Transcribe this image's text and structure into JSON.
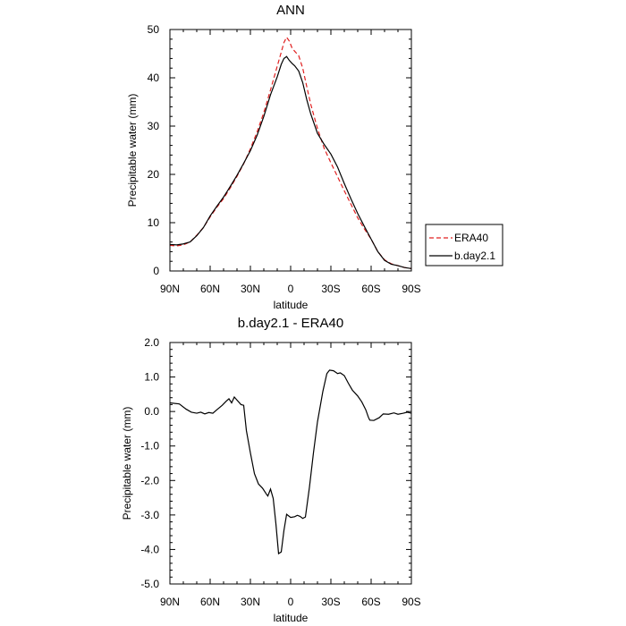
{
  "chart_data": [
    {
      "type": "line",
      "title": "ANN",
      "xlabel": "latitude",
      "ylabel": "Precipitable water (mm)",
      "xlim": [
        90,
        -90
      ],
      "ylim": [
        0,
        50
      ],
      "x_ticks": [
        90,
        60,
        30,
        0,
        -30,
        -60,
        -90
      ],
      "x_tick_labels": [
        "90N",
        "60N",
        "30N",
        "0",
        "30S",
        "60S",
        "90S"
      ],
      "y_ticks": [
        0,
        10,
        20,
        30,
        40,
        50
      ],
      "y_tick_labels": [
        "0",
        "10",
        "20",
        "30",
        "40",
        "50"
      ],
      "legend_position": "outside-right",
      "series": [
        {
          "name": "ERA40",
          "color": "#e02020",
          "dash": "dashed",
          "points": [
            [
              90,
              5.3
            ],
            [
              85,
              5.2
            ],
            [
              80,
              5.4
            ],
            [
              75,
              6.0
            ],
            [
              70,
              7.4
            ],
            [
              65,
              9.0
            ],
            [
              60,
              11.2
            ],
            [
              55,
              13.2
            ],
            [
              50,
              15.0
            ],
            [
              45,
              17.2
            ],
            [
              40,
              19.6
            ],
            [
              35,
              22.2
            ],
            [
              30,
              25.3
            ],
            [
              25,
              28.8
            ],
            [
              20,
              32.8
            ],
            [
              15,
              37.5
            ],
            [
              10,
              42.4
            ],
            [
              7,
              45.3
            ],
            [
              5,
              47.3
            ],
            [
              3,
              48.4
            ],
            [
              1,
              47.6
            ],
            [
              -1,
              46.2
            ],
            [
              -3,
              45.5
            ],
            [
              -6,
              44.6
            ],
            [
              -9,
              42.0
            ],
            [
              -12,
              38.2
            ],
            [
              -15,
              34.5
            ],
            [
              -20,
              29.5
            ],
            [
              -25,
              25.4
            ],
            [
              -30,
              22.4
            ],
            [
              -35,
              19.5
            ],
            [
              -40,
              16.6
            ],
            [
              -45,
              13.8
            ],
            [
              -50,
              11.0
            ],
            [
              -55,
              8.7
            ],
            [
              -60,
              6.6
            ],
            [
              -65,
              4.0
            ],
            [
              -70,
              2.3
            ],
            [
              -75,
              1.5
            ],
            [
              -80,
              1.1
            ],
            [
              -85,
              0.7
            ],
            [
              -90,
              0.5
            ]
          ]
        },
        {
          "name": "b.day2.1",
          "color": "#000000",
          "dash": "solid",
          "points": [
            [
              90,
              5.5
            ],
            [
              85,
              5.4
            ],
            [
              80,
              5.6
            ],
            [
              75,
              6.0
            ],
            [
              70,
              7.3
            ],
            [
              65,
              9.0
            ],
            [
              60,
              11.4
            ],
            [
              55,
              13.4
            ],
            [
              50,
              15.3
            ],
            [
              45,
              17.5
            ],
            [
              40,
              19.8
            ],
            [
              35,
              22.3
            ],
            [
              30,
              24.9
            ],
            [
              25,
              28.1
            ],
            [
              20,
              32.0
            ],
            [
              15,
              36.5
            ],
            [
              10,
              40.2
            ],
            [
              7,
              42.8
            ],
            [
              5,
              44.0
            ],
            [
              3,
              44.4
            ],
            [
              1,
              43.6
            ],
            [
              -1,
              43.0
            ],
            [
              -3,
              42.5
            ],
            [
              -6,
              41.4
            ],
            [
              -9,
              39.0
            ],
            [
              -12,
              35.5
            ],
            [
              -15,
              32.5
            ],
            [
              -20,
              28.5
            ],
            [
              -25,
              26.2
            ],
            [
              -30,
              24.2
            ],
            [
              -35,
              21.5
            ],
            [
              -40,
              18.1
            ],
            [
              -45,
              14.9
            ],
            [
              -50,
              11.9
            ],
            [
              -55,
              9.2
            ],
            [
              -60,
              6.6
            ],
            [
              -65,
              4.0
            ],
            [
              -70,
              2.2
            ],
            [
              -75,
              1.4
            ],
            [
              -80,
              1.1
            ],
            [
              -85,
              0.7
            ],
            [
              -90,
              0.5
            ]
          ]
        }
      ]
    },
    {
      "type": "line",
      "title": "b.day2.1 - ERA40",
      "xlabel": "latitude",
      "ylabel": "Precipitable water (mm)",
      "xlim": [
        90,
        -90
      ],
      "ylim": [
        -5.0,
        2.0
      ],
      "x_ticks": [
        90,
        60,
        30,
        0,
        -30,
        -60,
        -90
      ],
      "x_tick_labels": [
        "90N",
        "60N",
        "30N",
        "0",
        "30S",
        "60S",
        "90S"
      ],
      "y_ticks": [
        -5,
        -4,
        -3,
        -2,
        -1,
        0,
        1,
        2
      ],
      "y_tick_labels": [
        "-5.0",
        "-4.0",
        "-3.0",
        "-2.0",
        "-1.0",
        "0.0",
        "1.0",
        "2.0"
      ],
      "series": [
        {
          "color": "#000000",
          "dash": "solid",
          "points": [
            [
              90,
              0.25
            ],
            [
              83,
              0.22
            ],
            [
              78,
              0.07
            ],
            [
              74,
              -0.02
            ],
            [
              70,
              -0.05
            ],
            [
              67,
              -0.02
            ],
            [
              64,
              -0.07
            ],
            [
              61,
              -0.03
            ],
            [
              58,
              -0.05
            ],
            [
              55,
              0.05
            ],
            [
              51,
              0.18
            ],
            [
              48,
              0.3
            ],
            [
              46,
              0.37
            ],
            [
              44,
              0.25
            ],
            [
              42,
              0.42
            ],
            [
              40,
              0.33
            ],
            [
              37,
              0.2
            ],
            [
              35,
              0.18
            ],
            [
              33,
              -0.55
            ],
            [
              30,
              -1.2
            ],
            [
              27,
              -1.8
            ],
            [
              24,
              -2.1
            ],
            [
              21,
              -2.22
            ],
            [
              18,
              -2.4
            ],
            [
              17,
              -2.45
            ],
            [
              15,
              -2.25
            ],
            [
              13,
              -2.52
            ],
            [
              11,
              -3.25
            ],
            [
              9,
              -4.12
            ],
            [
              7,
              -4.07
            ],
            [
              5,
              -3.45
            ],
            [
              3,
              -2.98
            ],
            [
              0,
              -3.07
            ],
            [
              -3,
              -3.05
            ],
            [
              -5,
              -3.01
            ],
            [
              -7,
              -3.04
            ],
            [
              -9,
              -3.1
            ],
            [
              -11,
              -3.06
            ],
            [
              -14,
              -2.2
            ],
            [
              -17,
              -1.2
            ],
            [
              -20,
              -0.3
            ],
            [
              -24,
              0.58
            ],
            [
              -27,
              1.1
            ],
            [
              -29,
              1.2
            ],
            [
              -32,
              1.18
            ],
            [
              -35,
              1.1
            ],
            [
              -37,
              1.12
            ],
            [
              -40,
              1.04
            ],
            [
              -43,
              0.82
            ],
            [
              -46,
              0.62
            ],
            [
              -50,
              0.45
            ],
            [
              -53,
              0.28
            ],
            [
              -56,
              0.05
            ],
            [
              -58,
              -0.17
            ],
            [
              -59,
              -0.25
            ],
            [
              -62,
              -0.26
            ],
            [
              -66,
              -0.18
            ],
            [
              -69,
              -0.07
            ],
            [
              -73,
              -0.08
            ],
            [
              -77,
              -0.04
            ],
            [
              -80,
              -0.08
            ],
            [
              -84,
              -0.05
            ],
            [
              -87,
              -0.02
            ],
            [
              -90,
              -0.05
            ]
          ]
        }
      ]
    }
  ]
}
